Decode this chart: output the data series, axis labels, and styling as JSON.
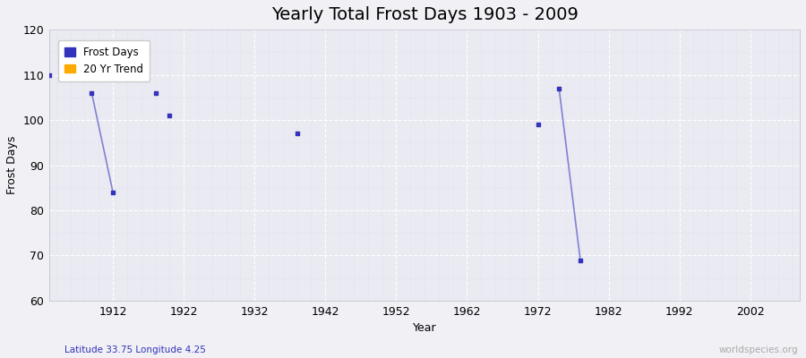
{
  "title": "Yearly Total Frost Days 1903 - 2009",
  "xlabel": "Year",
  "ylabel": "Frost Days",
  "xlim": [
    1903,
    2009
  ],
  "ylim": [
    60,
    120
  ],
  "xticks": [
    1912,
    1922,
    1932,
    1942,
    1952,
    1962,
    1972,
    1982,
    1992,
    2002
  ],
  "yticks": [
    60,
    70,
    80,
    90,
    100,
    110,
    120
  ],
  "background_color": "#f0f0f5",
  "plot_bg_color": "#eaeaf2",
  "grid_color_major": "#ffffff",
  "grid_color_minor": "#dcdce8",
  "data_color": "#3333bb",
  "line_color": "#6666cc",
  "scatter_points": [
    [
      1903,
      110
    ],
    [
      1909,
      106
    ],
    [
      1912,
      84
    ],
    [
      1918,
      106
    ],
    [
      1920,
      101
    ],
    [
      1938,
      97
    ],
    [
      1972,
      99
    ],
    [
      1975,
      107
    ],
    [
      1978,
      69
    ]
  ],
  "line_segments": [
    [
      [
        1909,
        106
      ],
      [
        1912,
        84
      ]
    ],
    [
      [
        1975,
        107
      ],
      [
        1978,
        69
      ]
    ]
  ],
  "legend_frost_color": "#3333bb",
  "legend_trend_color": "#ffaa00",
  "bottom_left_text": "Latitude 33.75 Longitude 4.25",
  "bottom_right_text": "worldspecies.org",
  "title_fontsize": 14,
  "label_fontsize": 9,
  "tick_fontsize": 9,
  "legend_fontsize": 8.5
}
